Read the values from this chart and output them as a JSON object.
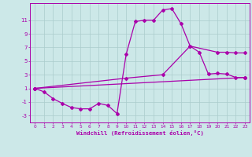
{
  "xlabel": "Windchill (Refroidissement éolien,°C)",
  "background_color": "#cce8e8",
  "line_color": "#aa00aa",
  "grid_color": "#aacccc",
  "xlim": [
    -0.5,
    23.5
  ],
  "ylim": [
    -4.0,
    13.5
  ],
  "yticks": [
    -3,
    -1,
    1,
    3,
    5,
    7,
    9,
    11
  ],
  "xticks": [
    0,
    1,
    2,
    3,
    4,
    5,
    6,
    7,
    8,
    9,
    10,
    11,
    12,
    13,
    14,
    15,
    16,
    17,
    18,
    19,
    20,
    21,
    22,
    23
  ],
  "line1_x": [
    0,
    1,
    2,
    3,
    4,
    5,
    6,
    7,
    8,
    9,
    10,
    11,
    12,
    13,
    14,
    15,
    16,
    17,
    18,
    19,
    20,
    21,
    22,
    23
  ],
  "line1_y": [
    1.0,
    0.5,
    -0.5,
    -1.2,
    -1.8,
    -2.0,
    -2.0,
    -1.2,
    -1.5,
    -2.7,
    6.0,
    10.8,
    11.0,
    11.0,
    12.5,
    12.7,
    10.5,
    7.2,
    6.3,
    3.1,
    3.2,
    3.1,
    2.6,
    2.6
  ],
  "line2_x": [
    0,
    10,
    14,
    17,
    20,
    21,
    22,
    23
  ],
  "line2_y": [
    1.0,
    2.5,
    3.0,
    7.2,
    6.3,
    6.3,
    6.2,
    6.2
  ],
  "line3_x": [
    0,
    23
  ],
  "line3_y": [
    1.0,
    2.6
  ]
}
